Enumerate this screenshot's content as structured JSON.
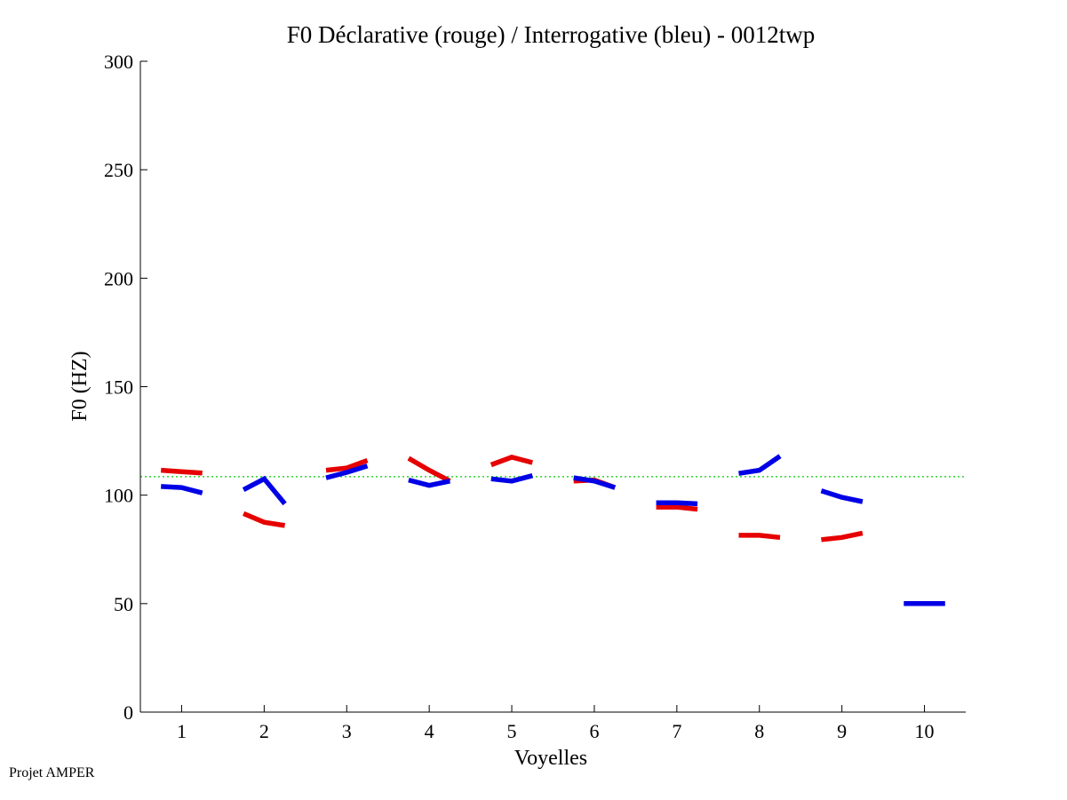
{
  "chart_data": {
    "type": "line",
    "title": "F0 Déclarative (rouge) / Interrogative (bleu) - 0012twp",
    "xlabel": "Voyelles",
    "ylabel": "F0 (HZ)",
    "xlim": [
      0.5,
      10.5
    ],
    "ylim": [
      0,
      300
    ],
    "xticks": [
      "1",
      "2",
      "3",
      "4",
      "5",
      "6",
      "7",
      "8",
      "9",
      "10"
    ],
    "yticks": [
      "0",
      "50",
      "100",
      "150",
      "200",
      "250",
      "300"
    ],
    "grid": false,
    "reference_line": {
      "y": 108.5,
      "color": "#00cc00",
      "style": "dotted"
    },
    "series": [
      {
        "color": "#e60000",
        "segments": [
          {
            "vowel": 1,
            "x": [
              0.75,
              1.0,
              1.25
            ],
            "y": [
              111.5,
              110.8,
              110.2
            ]
          },
          {
            "vowel": 2,
            "x": [
              1.75,
              2.0,
              2.25
            ],
            "y": [
              91.5,
              87.5,
              86.0
            ]
          },
          {
            "vowel": 3,
            "x": [
              2.75,
              3.0,
              3.25
            ],
            "y": [
              111.5,
              112.5,
              116.0
            ]
          },
          {
            "vowel": 4,
            "x": [
              3.75,
              4.0,
              4.25
            ],
            "y": [
              117.0,
              111.5,
              106.5
            ]
          },
          {
            "vowel": 5,
            "x": [
              4.75,
              5.0,
              5.25
            ],
            "y": [
              114.0,
              117.5,
              115.0
            ]
          },
          {
            "vowel": 6,
            "x": [
              5.75,
              6.0,
              6.25
            ],
            "y": [
              106.5,
              107.0,
              103.5
            ]
          },
          {
            "vowel": 7,
            "x": [
              6.75,
              7.0,
              7.25
            ],
            "y": [
              94.5,
              94.5,
              93.5
            ]
          },
          {
            "vowel": 8,
            "x": [
              7.75,
              8.0,
              8.25
            ],
            "y": [
              81.5,
              81.5,
              80.5
            ]
          },
          {
            "vowel": 9,
            "x": [
              8.75,
              9.0,
              9.25
            ],
            "y": [
              79.5,
              80.5,
              82.5
            ]
          }
        ]
      },
      {
        "color": "#0000e6",
        "segments": [
          {
            "vowel": 1,
            "x": [
              0.75,
              1.0,
              1.25
            ],
            "y": [
              104.0,
              103.5,
              101.0
            ]
          },
          {
            "vowel": 2,
            "x": [
              1.75,
              2.0,
              2.25
            ],
            "y": [
              102.5,
              107.5,
              96.0
            ]
          },
          {
            "vowel": 3,
            "x": [
              2.75,
              3.0,
              3.25
            ],
            "y": [
              108.0,
              110.5,
              113.5
            ]
          },
          {
            "vowel": 4,
            "x": [
              3.75,
              4.0,
              4.25
            ],
            "y": [
              107.0,
              104.5,
              106.5
            ]
          },
          {
            "vowel": 5,
            "x": [
              4.75,
              5.0,
              5.25
            ],
            "y": [
              107.5,
              106.5,
              109.0
            ]
          },
          {
            "vowel": 6,
            "x": [
              5.75,
              6.0,
              6.25
            ],
            "y": [
              108.0,
              106.5,
              103.5
            ]
          },
          {
            "vowel": 7,
            "x": [
              6.75,
              7.0,
              7.25
            ],
            "y": [
              96.5,
              96.5,
              96.0
            ]
          },
          {
            "vowel": 8,
            "x": [
              7.75,
              8.0,
              8.25
            ],
            "y": [
              110.0,
              111.5,
              118.0
            ]
          },
          {
            "vowel": 9,
            "x": [
              8.75,
              9.0,
              9.25
            ],
            "y": [
              102.0,
              99.0,
              97.0
            ]
          },
          {
            "vowel": 10,
            "x": [
              9.75,
              10.0,
              10.25
            ],
            "y": [
              50.0,
              50.0,
              50.0
            ]
          }
        ]
      }
    ]
  },
  "footer": {
    "credit": "Projet AMPER"
  }
}
